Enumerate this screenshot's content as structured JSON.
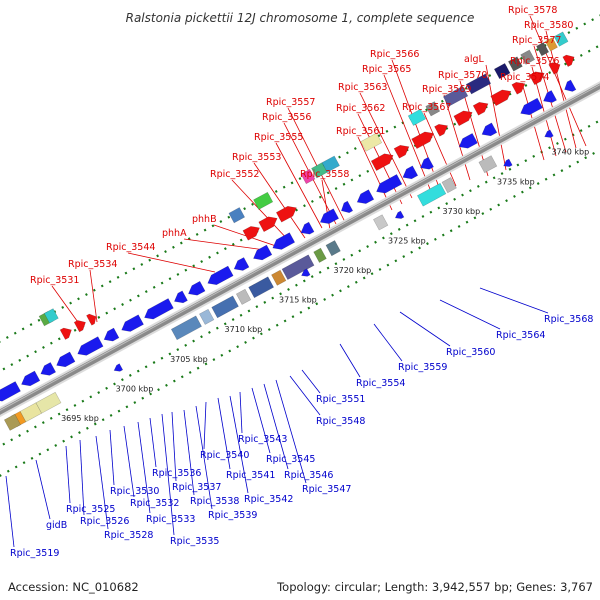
{
  "title": "Ralstonia pickettii 12J chromosome 1, complete sequence",
  "footer": {
    "accession": "Accession: NC_010682",
    "topology": "Topology: circular; Length: 3,942,557 bp; Genes: 3,767"
  },
  "colors": {
    "upper_label": "#dd0000",
    "lower_label": "#0000cc",
    "forward_gene": "#ee1111",
    "reverse_gene": "#1a1aee",
    "backbone": "#8a8a8a",
    "dots": "#1a7a1a"
  },
  "ticks": [
    "3695 kbp",
    "3700 kbp",
    "3705 kbp",
    "3710 kbp",
    "3715 kbp",
    "3720 kbp",
    "3725 kbp",
    "3730 kbp",
    "3735 kbp",
    "3740 kbp"
  ],
  "upper_labels": [
    {
      "text": "Rpic_3531"
    },
    {
      "text": "Rpic_3534"
    },
    {
      "text": "Rpic_3544"
    },
    {
      "text": "phhA"
    },
    {
      "text": "phhB"
    },
    {
      "text": "Rpic_3552"
    },
    {
      "text": "Rpic_3553"
    },
    {
      "text": "Rpic_3558"
    },
    {
      "text": "Rpic_3555"
    },
    {
      "text": "Rpic_3556"
    },
    {
      "text": "Rpic_3557"
    },
    {
      "text": "Rpic_3561"
    },
    {
      "text": "Rpic_3562"
    },
    {
      "text": "Rpic_3563"
    },
    {
      "text": "Rpic_3565"
    },
    {
      "text": "Rpic_3566"
    },
    {
      "text": "Rpic_3567"
    },
    {
      "text": "Rpic_3569"
    },
    {
      "text": "Rpic_3570"
    },
    {
      "text": "algL"
    },
    {
      "text": "Rpic_3574"
    },
    {
      "text": "Rpic_3576"
    },
    {
      "text": "Rpic_3577"
    },
    {
      "text": "Rpic_3580"
    },
    {
      "text": "Rpic_3578"
    }
  ],
  "lower_labels": [
    {
      "text": "Rpic_3519"
    },
    {
      "text": "gidB"
    },
    {
      "text": "Rpic_3525"
    },
    {
      "text": "Rpic_3526"
    },
    {
      "text": "Rpic_3528"
    },
    {
      "text": "Rpic_3530"
    },
    {
      "text": "Rpic_3532"
    },
    {
      "text": "Rpic_3533"
    },
    {
      "text": "Rpic_3536"
    },
    {
      "text": "Rpic_3535"
    },
    {
      "text": "Rpic_3537"
    },
    {
      "text": "Rpic_3538"
    },
    {
      "text": "Rpic_3539"
    },
    {
      "text": "Rpic_3540"
    },
    {
      "text": "Rpic_3541"
    },
    {
      "text": "Rpic_3542"
    },
    {
      "text": "Rpic_3543"
    },
    {
      "text": "Rpic_3545"
    },
    {
      "text": "Rpic_3546"
    },
    {
      "text": "Rpic_3547"
    },
    {
      "text": "Rpic_3548"
    },
    {
      "text": "Rpic_3551"
    },
    {
      "text": "Rpic_3554"
    },
    {
      "text": "Rpic_3559"
    },
    {
      "text": "Rpic_3560"
    },
    {
      "text": "Rpic_3564"
    },
    {
      "text": "Rpic_3568"
    }
  ]
}
